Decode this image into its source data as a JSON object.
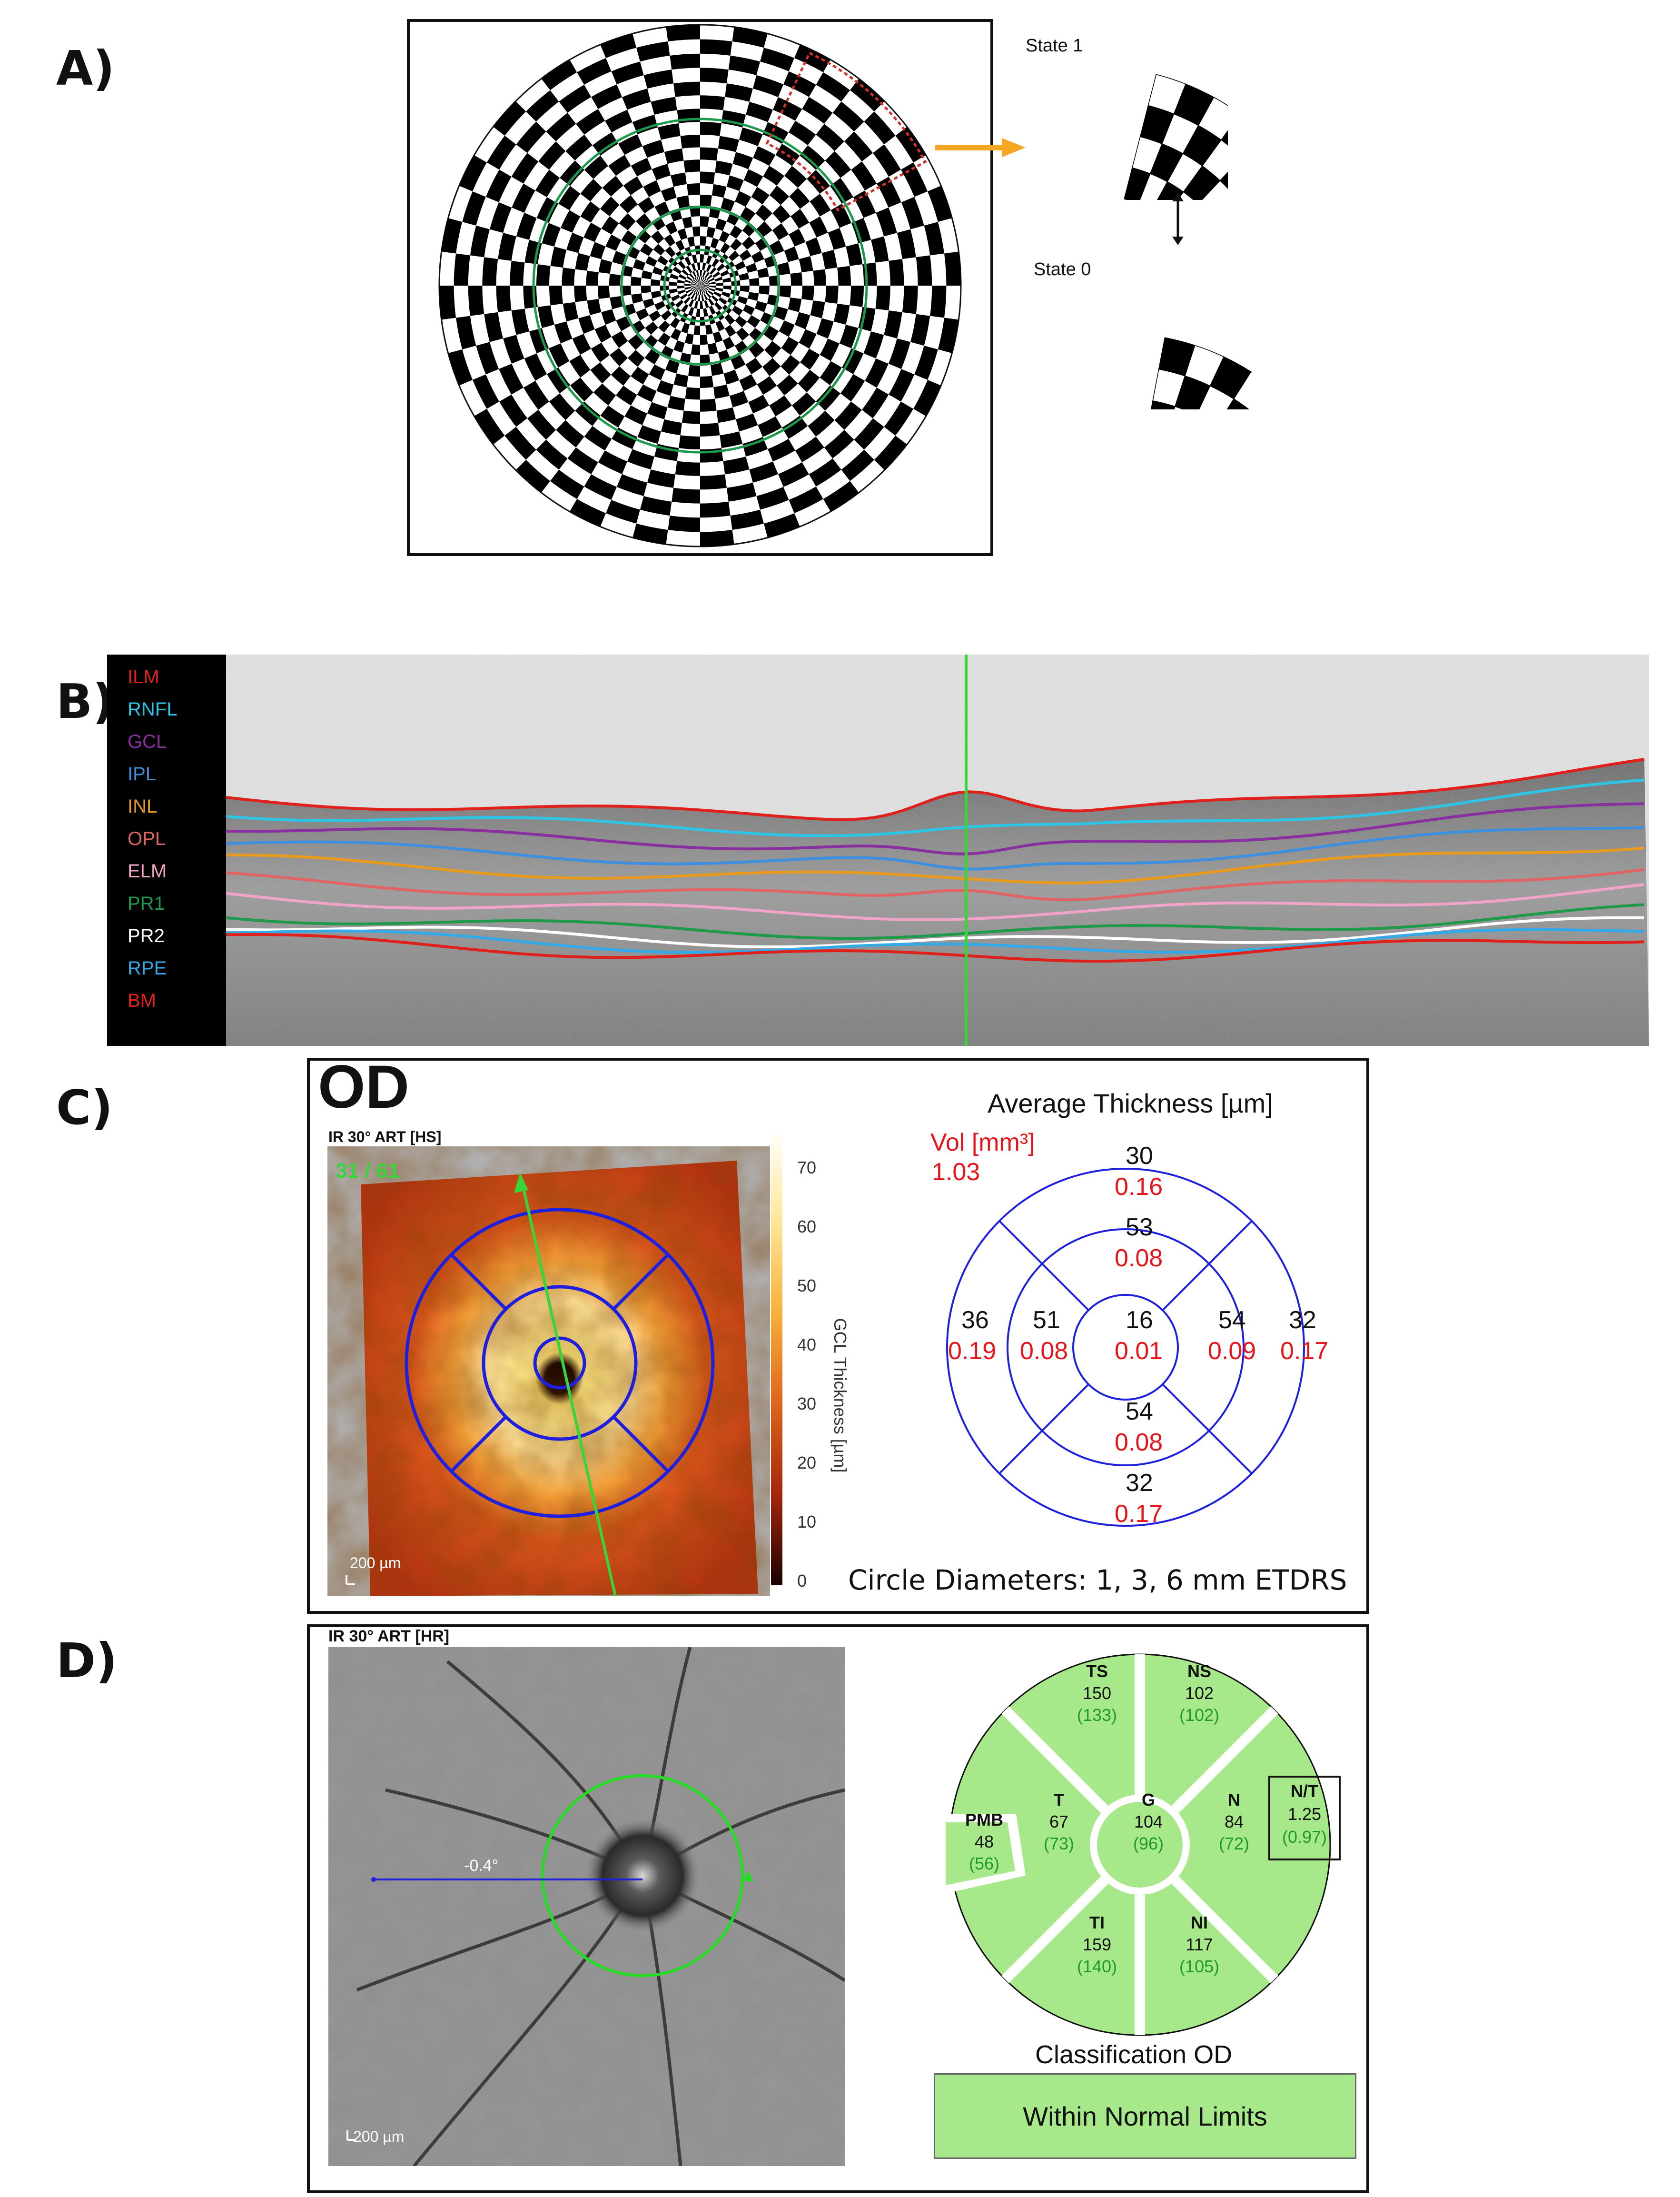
{
  "panels": {
    "a": "A)",
    "b": "B)",
    "c": "C)",
    "d": "D)"
  },
  "panel_a": {
    "state1_label": "State 1",
    "state0_label": "State 0",
    "colors": {
      "ring": "#1a9a4a",
      "arrow": "#f5a623",
      "highlight": "#d0312d"
    }
  },
  "panel_b": {
    "layers": [
      {
        "name": "ILM",
        "color": "#e0201b"
      },
      {
        "name": "RNFL",
        "color": "#2ec4e6"
      },
      {
        "name": "GCL",
        "color": "#8a2fa0"
      },
      {
        "name": "IPL",
        "color": "#3d8fe0"
      },
      {
        "name": "INL",
        "color": "#e89a1c"
      },
      {
        "name": "OPL",
        "color": "#e06464"
      },
      {
        "name": "ELM",
        "color": "#f2a3c8"
      },
      {
        "name": "PR1",
        "color": "#1f9a4a"
      },
      {
        "name": "PR2",
        "color": "#ffffff"
      },
      {
        "name": "RPE",
        "color": "#33a9e8"
      },
      {
        "name": "BM",
        "color": "#e0201b"
      }
    ],
    "scan_line_color": "#39d439"
  },
  "panel_c": {
    "eye": "OD",
    "image_label": "IR 30° ART [HS]",
    "slice_indicator": "31 / 61",
    "scale_bar": "200 µm",
    "colorbar_ticks": [
      "70",
      "60",
      "50",
      "40",
      "30",
      "20",
      "10",
      "0"
    ],
    "colorbar_label": "GCL  Thickness [µm]",
    "chart_title": "Average Thickness [µm]",
    "vol_label": "Vol [mm³]",
    "total_volume": "1.03",
    "sectors": [
      {
        "id": "outer-superior",
        "thickness": "30",
        "volume": "0.16"
      },
      {
        "id": "inner-superior",
        "thickness": "53",
        "volume": "0.08"
      },
      {
        "id": "outer-temporal",
        "thickness": "36",
        "volume": "0.19"
      },
      {
        "id": "inner-temporal",
        "thickness": "51",
        "volume": "0.08"
      },
      {
        "id": "center",
        "thickness": "16",
        "volume": "0.01"
      },
      {
        "id": "inner-nasal",
        "thickness": "54",
        "volume": "0.09"
      },
      {
        "id": "outer-nasal",
        "thickness": "32",
        "volume": "0.17"
      },
      {
        "id": "inner-inferior",
        "thickness": "54",
        "volume": "0.08"
      },
      {
        "id": "outer-inferior",
        "thickness": "32",
        "volume": "0.17"
      }
    ],
    "footer": "Circle Diameters: 1, 3, 6 mm ETDRS",
    "colors": {
      "thickness": "#111111",
      "volume": "#e8141b",
      "grid": "#1f1fe0"
    }
  },
  "panel_d": {
    "image_label": "IR 30° ART [HR]",
    "angle_label": "-0.4°",
    "scale_bar": "200 µm",
    "sectors": [
      {
        "id": "TS",
        "label": "TS",
        "value": "150",
        "normal": "(133)"
      },
      {
        "id": "NS",
        "label": "NS",
        "value": "102",
        "normal": "(102)"
      },
      {
        "id": "T",
        "label": "T",
        "value": "67",
        "normal": "(73)"
      },
      {
        "id": "G",
        "label": "G",
        "value": "104",
        "normal": "(96)"
      },
      {
        "id": "N",
        "label": "N",
        "value": "84",
        "normal": "(72)"
      },
      {
        "id": "PMB",
        "label": "PMB",
        "value": "48",
        "normal": "(56)"
      },
      {
        "id": "TI",
        "label": "TI",
        "value": "159",
        "normal": "(140)"
      },
      {
        "id": "NI",
        "label": "NI",
        "value": "117",
        "normal": "(105)"
      }
    ],
    "nt_ratio": {
      "label": "N/T",
      "value": "1.25",
      "normal": "(0.97)"
    },
    "classification_title": "Classification OD",
    "classification": "Within Normal Limits",
    "colors": {
      "normal_fill": "#a6e88a",
      "normal_text": "#1e9a2a"
    }
  }
}
